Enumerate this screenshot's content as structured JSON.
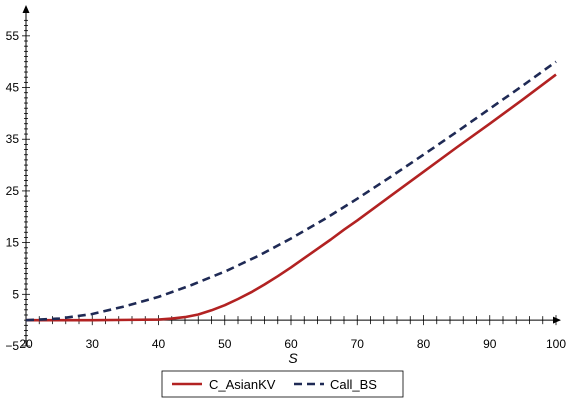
{
  "chart_data": {
    "type": "line",
    "title": "",
    "xlabel": "S",
    "ylabel": "",
    "xlim": [
      20,
      100
    ],
    "ylim": [
      -5,
      60
    ],
    "x_ticks": [
      20,
      30,
      40,
      50,
      60,
      70,
      80,
      90,
      100
    ],
    "y_ticks": [
      -5,
      5,
      15,
      25,
      35,
      45,
      55
    ],
    "grid": false,
    "legend_position": "bottom",
    "series": [
      {
        "name": "C_AsianKV",
        "color": "#b22222",
        "style": "solid",
        "x": [
          20,
          30,
          40,
          42,
          44,
          46,
          48,
          50,
          52,
          54,
          56,
          58,
          60,
          62,
          64,
          66,
          68,
          70,
          75,
          80,
          85,
          90,
          95,
          100
        ],
        "y": [
          0,
          0,
          0.1,
          0.3,
          0.6,
          1.1,
          1.9,
          2.9,
          4.1,
          5.4,
          6.9,
          8.5,
          10.2,
          12.0,
          13.8,
          15.6,
          17.5,
          19.3,
          24.0,
          28.7,
          33.4,
          38.0,
          42.7,
          47.5
        ]
      },
      {
        "name": "Call_BS",
        "color": "#1f2a55",
        "style": "dashed",
        "x": [
          20,
          25,
          30,
          35,
          40,
          45,
          50,
          55,
          60,
          65,
          70,
          75,
          80,
          85,
          90,
          95,
          100
        ],
        "y": [
          0,
          0.3,
          1.2,
          2.7,
          4.5,
          6.8,
          9.4,
          12.4,
          15.8,
          19.5,
          23.5,
          27.7,
          32.0,
          36.4,
          40.9,
          45.4,
          50.0
        ]
      }
    ]
  }
}
